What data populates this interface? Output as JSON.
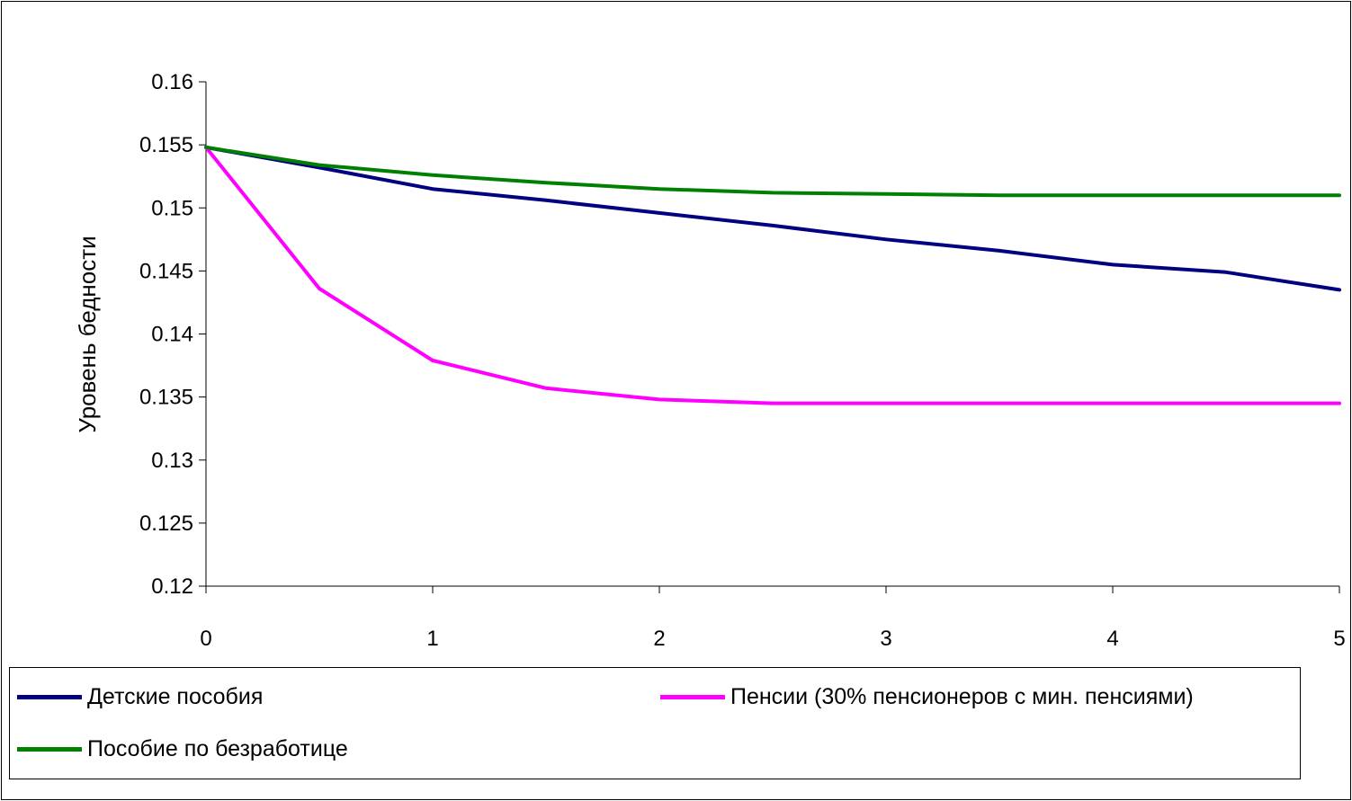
{
  "chart_data": {
    "type": "line",
    "ylabel": "Уровень бедности",
    "xlabel": "",
    "xlim": [
      0,
      5
    ],
    "ylim": [
      0.12,
      0.16
    ],
    "x_ticks": [
      "0",
      "1",
      "2",
      "3",
      "4",
      "5"
    ],
    "y_ticks": [
      "0.12",
      "0.125",
      "0.13",
      "0.135",
      "0.14",
      "0.145",
      "0.15",
      "0.155",
      "0.16"
    ],
    "grid": false,
    "legend_position": "bottom",
    "x": [
      0,
      0.5,
      1,
      1.5,
      2,
      2.5,
      3,
      3.5,
      4,
      4.5,
      5
    ],
    "series": [
      {
        "name": "Детские пособия",
        "color": "#000080",
        "values": [
          0.1548,
          0.1532,
          0.1515,
          0.1506,
          0.1496,
          0.1486,
          0.1475,
          0.1466,
          0.1455,
          0.1449,
          0.1435
        ]
      },
      {
        "name": "Пенсии (30% пенсионеров с мин. пенсиями)",
        "color": "#ff00ff",
        "values": [
          0.1548,
          0.1436,
          0.1379,
          0.1357,
          0.1348,
          0.1345,
          0.1345,
          0.1345,
          0.1345,
          0.1345,
          0.1345
        ]
      },
      {
        "name": "Пособие по безработице",
        "color": "#008000",
        "values": [
          0.1548,
          0.1534,
          0.1526,
          0.152,
          0.1515,
          0.1512,
          0.1511,
          0.151,
          0.151,
          0.151,
          0.151
        ]
      }
    ]
  }
}
